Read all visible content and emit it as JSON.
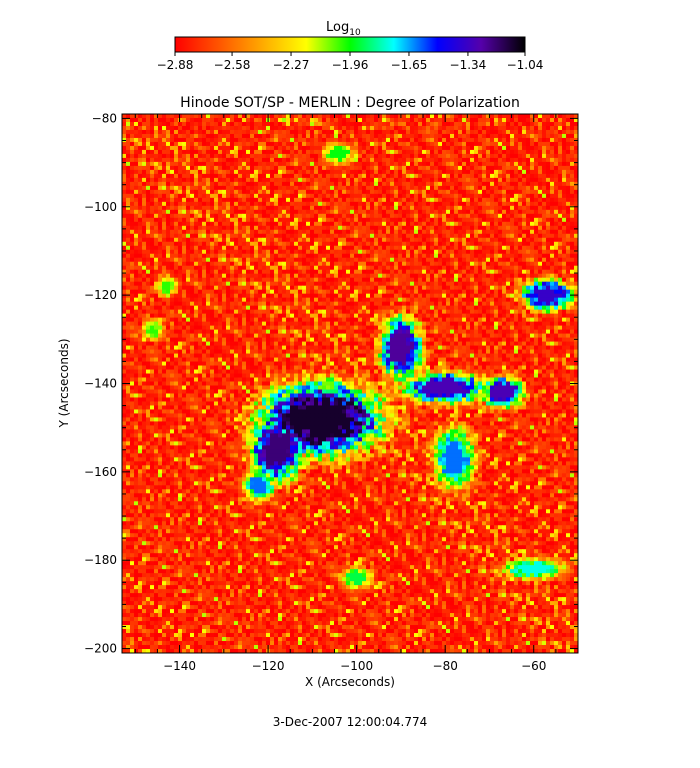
{
  "chart_data": {
    "type": "heatmap",
    "title": "Hinode SOT/SP - MERLIN : Degree of Polarization",
    "xlabel": "X (Arcseconds)",
    "ylabel": "Y (Arcseconds)",
    "xlim": [
      -153,
      -50
    ],
    "ylim": [
      -201,
      -79
    ],
    "x_ticks": [
      -140,
      -120,
      -100,
      -80,
      -60
    ],
    "y_ticks": [
      -80,
      -100,
      -120,
      -140,
      -160,
      -180,
      -200
    ],
    "x_tick_labels": [
      "−140",
      "−120",
      "−100",
      "−80",
      "−60"
    ],
    "y_tick_labels": [
      "−80",
      "−100",
      "−120",
      "−140",
      "−160",
      "−180",
      "−200"
    ],
    "colorbar": {
      "title": "Log",
      "title_subscript": "10",
      "scale": "log10",
      "min": -2.88,
      "max": -1.04,
      "ticks": [
        -2.88,
        -2.58,
        -2.27,
        -1.96,
        -1.65,
        -1.34,
        -1.04
      ],
      "tick_labels": [
        "−2.88",
        "−2.58",
        "−2.27",
        "−1.96",
        "−1.65",
        "−1.34",
        "−1.04"
      ],
      "colormap": [
        "#ff0000",
        "#ff5500",
        "#ffaa00",
        "#ffff00",
        "#00ff00",
        "#00ffff",
        "#0000ff",
        "#5500aa",
        "#000000"
      ]
    },
    "strong_regions": [
      {
        "x": -108,
        "y": -148,
        "rx": 12,
        "ry": 7,
        "value": -1.1
      },
      {
        "x": -118,
        "y": -155,
        "rx": 5,
        "ry": 6,
        "value": -1.2
      },
      {
        "x": -90,
        "y": -132,
        "rx": 4,
        "ry": 6,
        "value": -1.25
      },
      {
        "x": -80,
        "y": -141,
        "rx": 8,
        "ry": 3,
        "value": -1.3
      },
      {
        "x": -67,
        "y": -142,
        "rx": 4,
        "ry": 3,
        "value": -1.3
      },
      {
        "x": -57,
        "y": -120,
        "rx": 5,
        "ry": 3,
        "value": -1.35
      },
      {
        "x": -78,
        "y": -157,
        "rx": 4,
        "ry": 6,
        "value": -1.6
      },
      {
        "x": -122,
        "y": -163,
        "rx": 3,
        "ry": 3,
        "value": -1.6
      },
      {
        "x": -60,
        "y": -182,
        "rx": 6,
        "ry": 2,
        "value": -1.75
      },
      {
        "x": -100,
        "y": -184,
        "rx": 3,
        "ry": 2,
        "value": -1.9
      },
      {
        "x": -104,
        "y": -88,
        "rx": 3,
        "ry": 2,
        "value": -1.95
      },
      {
        "x": -146,
        "y": -128,
        "rx": 2,
        "ry": 2,
        "value": -2.0
      },
      {
        "x": -143,
        "y": -118,
        "rx": 2,
        "ry": 2,
        "value": -2.0
      }
    ],
    "background_value": -2.8,
    "grid": false
  },
  "footer": {
    "timestamp": "3-Dec-2007 12:00:04.774"
  }
}
